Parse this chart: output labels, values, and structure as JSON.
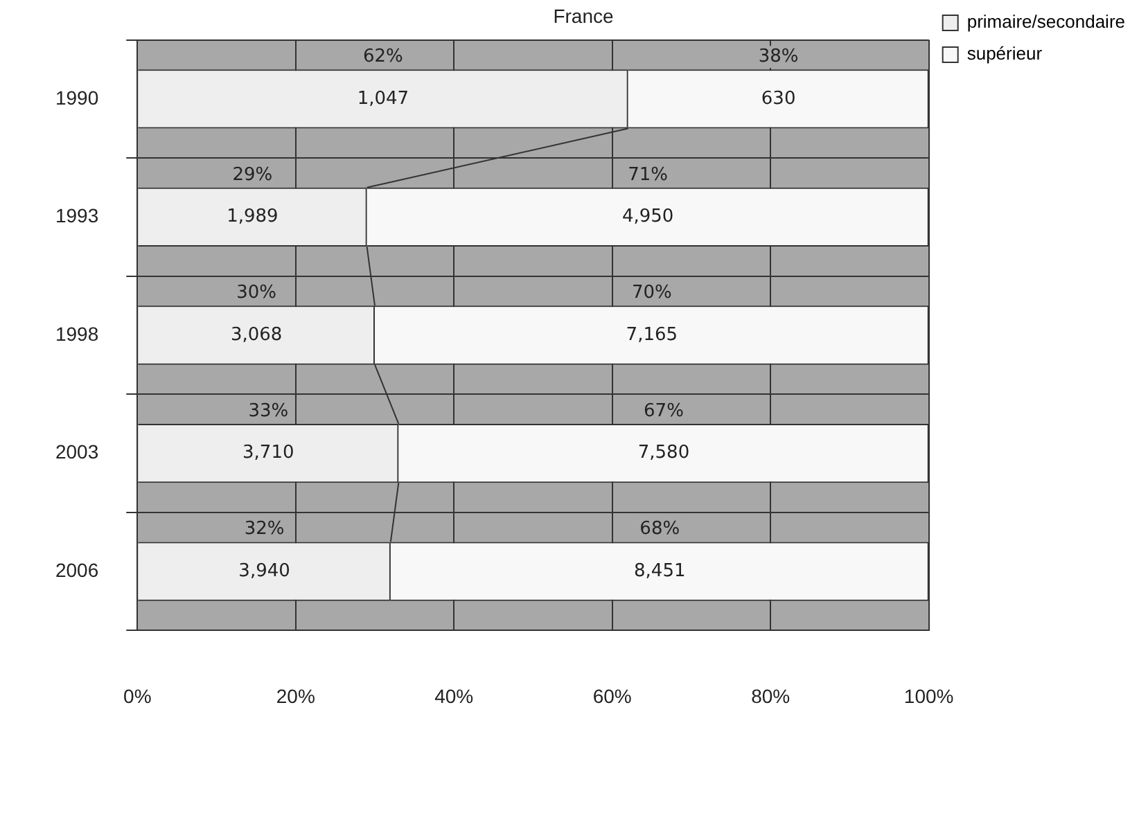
{
  "chart_data": {
    "type": "bar",
    "title": "France",
    "orientation": "horizontal",
    "stacked": true,
    "categories": [
      "1990",
      "1993",
      "1998",
      "2003",
      "2006"
    ],
    "series": [
      {
        "name": "primaire/secondaire",
        "color": "#eeeeee",
        "values": [
          62,
          29,
          30,
          33,
          32
        ],
        "value_labels": [
          "62%",
          "29%",
          "30%",
          "33%",
          "32%"
        ]
      },
      {
        "name": "supérieur",
        "color": "#f8f8f8",
        "values": [
          38,
          71,
          70,
          67,
          68
        ],
        "value_labels": [
          "38%",
          "71%",
          "70%",
          "67%",
          "68%"
        ]
      }
    ],
    "xlim": [
      0,
      100
    ],
    "xticks": [
      {
        "value": 0,
        "label": "0%"
      },
      {
        "value": 20,
        "label": "20%"
      },
      {
        "value": 40,
        "label": "40%"
      },
      {
        "value": 60,
        "label": "60%"
      },
      {
        "value": 80,
        "label": "80%"
      },
      {
        "value": 100,
        "label": "100%"
      }
    ],
    "grid": true,
    "legend": "top right",
    "annotations": [
      "1,047",
      "630",
      "1,989",
      "4,950",
      "3,068",
      "7,165",
      "3,710",
      "7,580",
      "3,940",
      "8,451"
    ]
  }
}
